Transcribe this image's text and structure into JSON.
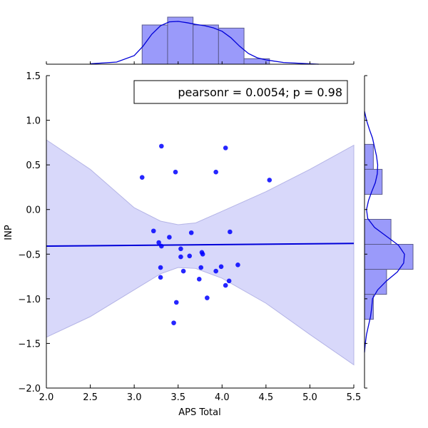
{
  "chart_data": {
    "type": "scatter",
    "title": "",
    "xlabel": "APS Total",
    "ylabel": "INP",
    "xlim": [
      2.0,
      5.5
    ],
    "ylim": [
      -2.0,
      1.5
    ],
    "x_ticks": [
      "2.0",
      "2.5",
      "3.0",
      "3.5",
      "4.0",
      "4.5",
      "5.0",
      "5.5"
    ],
    "y_ticks": [
      "−2.0",
      "−1.5",
      "−1.0",
      "−0.5",
      "0.0",
      "0.5",
      "1.0",
      "1.5"
    ],
    "annotation": "pearsonr = 0.0054; p = 0.98",
    "points": [
      {
        "x": 3.31,
        "y": 0.71
      },
      {
        "x": 4.04,
        "y": 0.69
      },
      {
        "x": 3.09,
        "y": 0.36
      },
      {
        "x": 3.47,
        "y": 0.42
      },
      {
        "x": 3.93,
        "y": 0.42
      },
      {
        "x": 4.54,
        "y": 0.33
      },
      {
        "x": 3.22,
        "y": -0.24
      },
      {
        "x": 3.65,
        "y": -0.26
      },
      {
        "x": 4.09,
        "y": -0.25
      },
      {
        "x": 3.4,
        "y": -0.31
      },
      {
        "x": 3.28,
        "y": -0.37
      },
      {
        "x": 3.31,
        "y": -0.41
      },
      {
        "x": 3.53,
        "y": -0.44
      },
      {
        "x": 3.77,
        "y": -0.48
      },
      {
        "x": 3.78,
        "y": -0.5
      },
      {
        "x": 3.53,
        "y": -0.53
      },
      {
        "x": 3.63,
        "y": -0.52
      },
      {
        "x": 4.18,
        "y": -0.62
      },
      {
        "x": 3.3,
        "y": -0.65
      },
      {
        "x": 3.76,
        "y": -0.65
      },
      {
        "x": 3.99,
        "y": -0.64
      },
      {
        "x": 3.56,
        "y": -0.69
      },
      {
        "x": 3.93,
        "y": -0.69
      },
      {
        "x": 3.3,
        "y": -0.76
      },
      {
        "x": 3.74,
        "y": -0.78
      },
      {
        "x": 4.08,
        "y": -0.8
      },
      {
        "x": 4.04,
        "y": -0.85
      },
      {
        "x": 3.83,
        "y": -0.99
      },
      {
        "x": 3.48,
        "y": -1.04
      },
      {
        "x": 3.45,
        "y": -1.27
      }
    ],
    "regression_line": {
      "x": [
        2.0,
        5.5
      ],
      "y": [
        -0.41,
        -0.38
      ]
    },
    "confidence_band": {
      "x": [
        2.0,
        2.5,
        3.0,
        3.3,
        3.5,
        3.7,
        4.0,
        4.5,
        5.0,
        5.5
      ],
      "upper": [
        0.78,
        0.45,
        0.02,
        -0.13,
        -0.17,
        -0.15,
        -0.02,
        0.2,
        0.45,
        0.72
      ],
      "lower": [
        -1.43,
        -1.2,
        -0.9,
        -0.72,
        -0.65,
        -0.66,
        -0.77,
        -1.05,
        -1.4,
        -1.74
      ]
    },
    "marginal_x": {
      "bins": [
        {
          "x0": 3.09,
          "x1": 3.38,
          "count": 5
        },
        {
          "x0": 3.38,
          "x1": 3.67,
          "count": 6
        },
        {
          "x0": 3.67,
          "x1": 3.96,
          "count": 5
        },
        {
          "x0": 3.96,
          "x1": 4.25,
          "count": 4.6
        },
        {
          "x0": 4.25,
          "x1": 4.54,
          "count": 0.7
        }
      ],
      "kde": {
        "x": [
          2.5,
          2.8,
          3.0,
          3.1,
          3.2,
          3.3,
          3.4,
          3.5,
          3.6,
          3.7,
          3.8,
          3.9,
          4.0,
          4.1,
          4.2,
          4.3,
          4.4,
          4.5,
          4.7,
          5.1
        ],
        "density": [
          0.01,
          0.05,
          0.2,
          0.42,
          0.7,
          0.9,
          0.99,
          1.0,
          0.97,
          0.93,
          0.9,
          0.85,
          0.77,
          0.62,
          0.42,
          0.25,
          0.15,
          0.1,
          0.04,
          0.0
        ]
      }
    },
    "marginal_y": {
      "bins": [
        {
          "y0": 0.45,
          "y1": 0.73,
          "count": 2
        },
        {
          "y0": 0.17,
          "y1": 0.45,
          "count": 4
        },
        {
          "y0": -0.39,
          "y1": -0.11,
          "count": 6
        },
        {
          "y0": -0.67,
          "y1": -0.39,
          "count": 11
        },
        {
          "y0": -0.95,
          "y1": -0.67,
          "count": 5
        },
        {
          "y0": -1.23,
          "y1": -0.95,
          "count": 2
        },
        {
          "y0": -1.51,
          "y1": -1.23,
          "count": 0
        }
      ],
      "kde": {
        "y": [
          1.1,
          1.0,
          0.9,
          0.8,
          0.7,
          0.6,
          0.5,
          0.4,
          0.3,
          0.2,
          0.1,
          0.0,
          -0.1,
          -0.2,
          -0.3,
          -0.4,
          -0.5,
          -0.6,
          -0.7,
          -0.8,
          -0.9,
          -1.0,
          -1.1,
          -1.2,
          -1.3,
          -1.4,
          -1.5,
          -1.6
        ],
        "density": [
          0.0,
          0.05,
          0.12,
          0.2,
          0.25,
          0.3,
          0.33,
          0.32,
          0.27,
          0.18,
          0.1,
          0.05,
          0.08,
          0.25,
          0.55,
          0.85,
          1.0,
          0.98,
          0.82,
          0.55,
          0.33,
          0.2,
          0.18,
          0.15,
          0.1,
          0.05,
          0.02,
          0.0
        ]
      }
    },
    "colors": {
      "points": "#0000ff",
      "line": "#0000d8",
      "band": "#d8d8fa",
      "band_edge": "#b4b4e6",
      "hist_fill": "#9a9afa",
      "hist_edge": "#5a5a8c",
      "kde": "#0000d8"
    }
  }
}
